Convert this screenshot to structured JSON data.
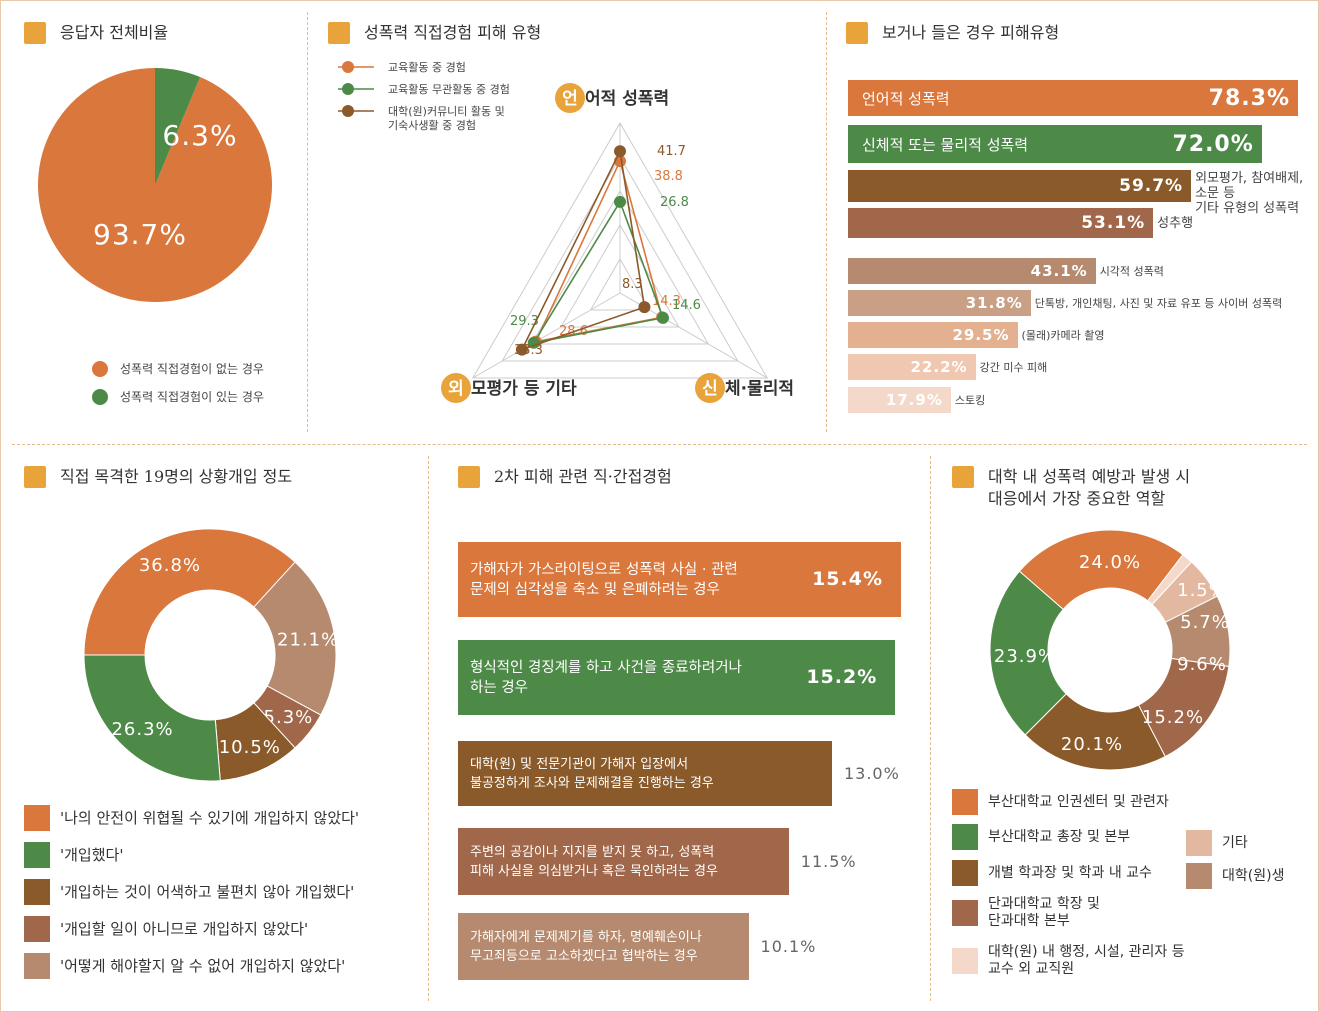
{
  "panels": {
    "p1": {
      "title": "응답자 전체비율",
      "legend": [
        {
          "label": "성폭력 직접경험이 없는 경우",
          "color": "#d9773d"
        },
        {
          "label": "성폭력 직접경험이 있는 경우",
          "color": "#4d8a48"
        }
      ]
    },
    "p2": {
      "title": "성폭력 직접경험 피해 유형",
      "legend": [
        {
          "label": "교육활동 중 경험",
          "color": "#d9773d"
        },
        {
          "label": "교육활동 무관활동 중 경험",
          "color": "#4d8a48"
        },
        {
          "label": "대학(원)커뮤니티 활동 및\n기숙사생활 중 경험",
          "color": "#8b5a2b"
        }
      ],
      "axes": [
        {
          "badge": "언",
          "rest": "어적 성폭력"
        },
        {
          "badge": "신",
          "rest": "체·물리적"
        },
        {
          "badge": "외",
          "rest": "모평가 등 기타"
        }
      ]
    },
    "p3": {
      "title": "보거나 들은 경우 피해유형"
    },
    "p4": {
      "title": "직접 목격한 19명의 상황개입 정도",
      "legend": [
        {
          "label": "'나의 안전이 위협될 수 있기에 개입하지 않았다'",
          "color": "#d9773d"
        },
        {
          "label": "'개입했다'",
          "color": "#4d8a48"
        },
        {
          "label": "'개입하는 것이 어색하고 불편치 않아 개입했다'",
          "color": "#8b5a2b"
        },
        {
          "label": "'개입할 일이 아니므로 개입하지 않았다'",
          "color": "#a0674a"
        },
        {
          "label": "'어떻게 해야할지 알 수 없어 개입하지 않았다'",
          "color": "#b58a6e"
        }
      ]
    },
    "p5": {
      "title": "2차 피해 관련 직·간접경험"
    },
    "p6": {
      "title": "대학 내 성폭력 예방과 발생 시\n대응에서 가장 중요한 역할",
      "legend_left": [
        {
          "label": "부산대학교 인권센터 및 관련자",
          "color": "#d9773d"
        },
        {
          "label": "부산대학교 총장 및 본부",
          "color": "#4d8a48"
        },
        {
          "label": "개별 학과장 및 학과 내 교수",
          "color": "#8b5a2b"
        },
        {
          "label": "단과대학교 학장 및\n단과대학 본부",
          "color": "#a0674a"
        },
        {
          "label": "대학(원) 내 행정, 시설, 관리자 등\n교수 외 교직원",
          "color": "#f4d9cb"
        }
      ],
      "legend_right": [
        {
          "label": "기타",
          "color": "#e3b8a0"
        },
        {
          "label": "대학(원)생",
          "color": "#b58a6e"
        }
      ]
    }
  },
  "chart_data": [
    {
      "type": "pie",
      "title": "응답자 전체비율",
      "labels": [
        "성폭력 직접경험이 없는 경우",
        "성폭력 직접경험이 있는 경우"
      ],
      "values": [
        93.7,
        6.3
      ],
      "value_labels": [
        "93.7%",
        "6.3%"
      ],
      "colors": [
        "#d9773d",
        "#4d8a48"
      ]
    },
    {
      "type": "radar",
      "title": "성폭력 직접경험 피해 유형",
      "axes": [
        "언어적 성폭력",
        "신체·물리적",
        "외모평가 등 기타"
      ],
      "rmax": 50,
      "series": [
        {
          "name": "교육활동 중 경험",
          "values": [
            38.8,
            14.3,
            28.6
          ],
          "color": "#d9773d"
        },
        {
          "name": "교육활동 무관활동 중 경험",
          "values": [
            26.8,
            14.6,
            29.3
          ],
          "color": "#4d8a48"
        },
        {
          "name": "대학(원)커뮤니티 활동 및 기숙사생활 중 경험",
          "values": [
            41.7,
            8.3,
            33.3
          ],
          "color": "#8b5a2b"
        }
      ]
    },
    {
      "type": "bar",
      "orientation": "horizontal",
      "title": "보거나 들은 경우 피해유형",
      "categories": [
        "언어적 성폭력",
        "신체적 또는 물리적 성폭력",
        "외모평가, 참여배제, 소문 등\n기타 유형의 성폭력",
        "성추행",
        "시각적 성폭력",
        "단톡방, 개인채팅, 사진 및 자료 유포 등 사이버 성폭력",
        "(몰래)카메라 촬영",
        "강간 미수 피해",
        "스토킹"
      ],
      "values": [
        78.3,
        72.0,
        59.7,
        53.1,
        43.1,
        31.8,
        29.5,
        22.2,
        17.9
      ],
      "value_labels": [
        "78.3%",
        "72.0%",
        "59.7%",
        "53.1%",
        "43.1%",
        "31.8%",
        "29.5%",
        "22.2%",
        "17.9%"
      ],
      "label_inside": [
        true,
        true,
        false,
        false,
        false,
        false,
        false,
        false,
        false
      ],
      "colors": [
        "#d9773d",
        "#4d8a48",
        "#8b5a2b",
        "#a0674a",
        "#b58a6e",
        "#c9a086",
        "#e3b090",
        "#f0c7b0",
        "#f4d9cb"
      ]
    },
    {
      "type": "donut",
      "title": "직접 목격한 19명의 상황개입 정도",
      "labels": [
        "'나의 안전이 위협될 수 있기에 개입하지 않았다'",
        "'어떻게 해야할지 알 수 없어 개입하지 않았다'",
        "'개입할 일이 아니므로 개입하지 않았다'",
        "'개입하는 것이 어색하고 불편치 않아 개입했다'",
        "'개입했다'"
      ],
      "values": [
        36.8,
        21.1,
        5.3,
        10.5,
        26.3
      ],
      "value_labels": [
        "36.8%",
        "21.1%",
        "5.3%",
        "10.5%",
        "26.3%"
      ],
      "colors": [
        "#d9773d",
        "#b58a6e",
        "#a0674a",
        "#8b5a2b",
        "#4d8a48"
      ]
    },
    {
      "type": "bar",
      "orientation": "horizontal",
      "title": "2차 피해 관련 직·간접경험",
      "categories": [
        "가해자가 가스라이팅으로 성폭력 사실 · 관련\n문제의 심각성을 축소 및 은폐하려는 경우",
        "형식적인 경징계를 하고 사건을 종료하려거나\n하는 경우",
        "대학(원) 및 전문기관이 가해자 입장에서\n불공정하게 조사와 문제해결을 진행하는 경우",
        "주변의 공감이나 지지를 받지 못 하고, 성폭력\n피해 사실을 의심받거나 혹은 묵인하려는 경우",
        "가해자에게 문제제기를 하자, 명예훼손이나\n무고죄등으로 고소하겠다고 협박하는 경우"
      ],
      "values": [
        15.4,
        15.2,
        13.0,
        11.5,
        10.1
      ],
      "value_labels": [
        "15.4%",
        "15.2%",
        "13.0%",
        "11.5%",
        "10.1%"
      ],
      "label_inside": [
        true,
        true,
        false,
        false,
        false
      ],
      "colors": [
        "#d9773d",
        "#4d8a48",
        "#8b5a2b",
        "#a0674a",
        "#b58a6e"
      ]
    },
    {
      "type": "donut",
      "title": "대학 내 성폭력 예방과 발생 시 대응에서 가장 중요한 역할",
      "labels": [
        "부산대학교 인권센터 및 관련자",
        "대학(원) 내 행정, 시설, 관리자 등 교수 외 교직원",
        "기타",
        "대학(원)생",
        "단과대학교 학장 및 단과대학 본부",
        "개별 학과장 및 학과 내 교수",
        "부산대학교 총장 및 본부"
      ],
      "values": [
        24.0,
        1.5,
        5.7,
        9.6,
        15.2,
        20.1,
        23.9
      ],
      "value_labels": [
        "24.0%",
        "1.5%",
        "5.7%",
        "9.6%",
        "15.2%",
        "20.1%",
        "23.9%"
      ],
      "colors": [
        "#d9773d",
        "#f4d9cb",
        "#e3b8a0",
        "#b58a6e",
        "#a0674a",
        "#8b5a2b",
        "#4d8a48"
      ]
    }
  ]
}
